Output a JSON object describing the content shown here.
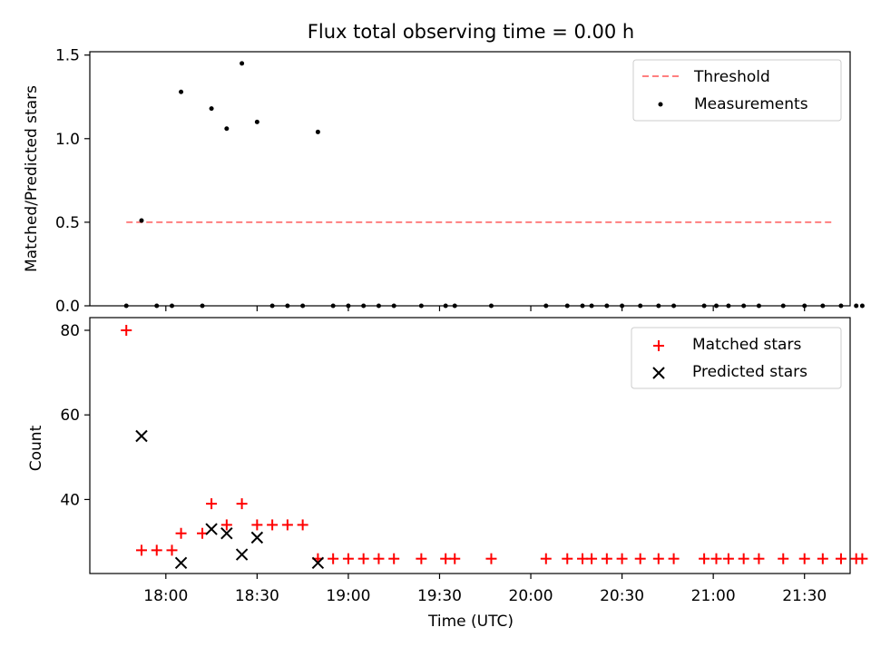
{
  "figure": {
    "title": "Flux total observing time = 0.00 h",
    "xlabel": "Time (UTC)"
  },
  "chart_data": [
    {
      "type": "scatter",
      "title": "Flux total observing time = 0.00 h",
      "ylabel": "Matched/Predicted stars",
      "xlim": [
        "17:35",
        "21:45"
      ],
      "ylim": [
        0,
        1.52
      ],
      "yticks": [
        "0.0",
        "0.5",
        "1.0",
        "1.5"
      ],
      "legend_position": "top-right",
      "threshold": {
        "name": "Threshold",
        "value": 0.5,
        "x_start": "17:47",
        "x_end": "21:39",
        "color": "#ff7f7f",
        "style": "dashed"
      },
      "series": [
        {
          "name": "Measurements",
          "color": "#000000",
          "marker": "dot",
          "x": [
            "17:47",
            "17:52",
            "17:57",
            "18:02",
            "18:05",
            "18:12",
            "18:15",
            "18:20",
            "18:25",
            "18:30",
            "18:35",
            "18:40",
            "18:45",
            "18:50",
            "18:55",
            "19:00",
            "19:05",
            "19:10",
            "19:15",
            "19:24",
            "19:32",
            "19:35",
            "19:47",
            "20:05",
            "20:12",
            "20:17",
            "20:20",
            "20:25",
            "20:30",
            "20:36",
            "20:42",
            "20:47",
            "20:57",
            "21:01",
            "21:05",
            "21:10",
            "21:15",
            "21:23",
            "21:30",
            "21:36",
            "21:42",
            "21:47",
            "21:49"
          ],
          "values": [
            0,
            0.51,
            0,
            0,
            1.28,
            0,
            1.18,
            1.06,
            1.45,
            1.1,
            0,
            0,
            0,
            1.04,
            0,
            0,
            0,
            0,
            0,
            0,
            0,
            0,
            0,
            0,
            0,
            0,
            0,
            0,
            0,
            0,
            0,
            0,
            0,
            0,
            0,
            0,
            0,
            0,
            0,
            0,
            0,
            0,
            0
          ]
        }
      ]
    },
    {
      "type": "scatter",
      "ylabel": "Count",
      "xlim": [
        "17:35",
        "21:45"
      ],
      "ylim": [
        22.5,
        83
      ],
      "yticks": [
        "40",
        "60",
        "80"
      ],
      "xticks": [
        "18:00",
        "18:30",
        "19:00",
        "19:30",
        "20:00",
        "20:30",
        "21:00",
        "21:30"
      ],
      "legend_position": "top-right",
      "series": [
        {
          "name": "Matched stars",
          "color": "#ff0000",
          "marker": "plus",
          "x": [
            "17:47",
            "17:52",
            "17:57",
            "18:02",
            "18:05",
            "18:12",
            "18:15",
            "18:20",
            "18:25",
            "18:30",
            "18:35",
            "18:40",
            "18:45",
            "18:50",
            "18:55",
            "19:00",
            "19:05",
            "19:10",
            "19:15",
            "19:24",
            "19:32",
            "19:35",
            "19:47",
            "20:05",
            "20:12",
            "20:17",
            "20:20",
            "20:25",
            "20:30",
            "20:36",
            "20:42",
            "20:47",
            "20:57",
            "21:01",
            "21:05",
            "21:10",
            "21:15",
            "21:23",
            "21:30",
            "21:36",
            "21:42",
            "21:47",
            "21:49"
          ],
          "values": [
            80,
            28,
            28,
            28,
            32,
            32,
            39,
            34,
            39,
            34,
            34,
            34,
            34,
            26,
            26,
            26,
            26,
            26,
            26,
            26,
            26,
            26,
            26,
            26,
            26,
            26,
            26,
            26,
            26,
            26,
            26,
            26,
            26,
            26,
            26,
            26,
            26,
            26,
            26,
            26,
            26,
            26,
            26
          ]
        },
        {
          "name": "Predicted stars",
          "color": "#000000",
          "marker": "x",
          "x": [
            "17:52",
            "18:05",
            "18:15",
            "18:20",
            "18:25",
            "18:30",
            "18:50"
          ],
          "values": [
            55,
            25,
            33,
            32,
            27,
            31,
            25
          ]
        }
      ]
    }
  ]
}
